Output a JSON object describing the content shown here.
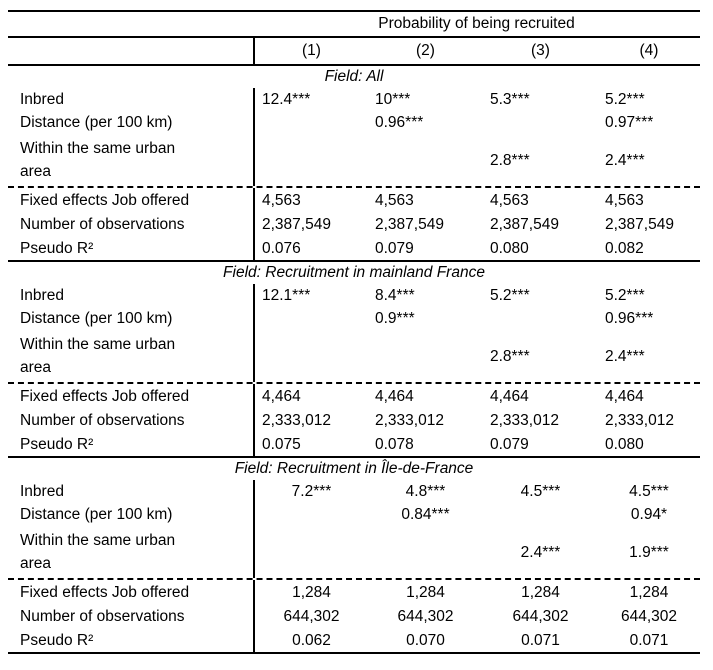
{
  "table": {
    "title": "Probability of being recruited",
    "column_headers": [
      "(1)",
      "(2)",
      "(3)",
      "(4)"
    ],
    "row_labels": {
      "inbred": "Inbred",
      "distance": "Distance (per 100 km)",
      "urban": "Within the same urban area",
      "fixed_effects": "Fixed effects Job offered",
      "observations": "Number of observations",
      "pseudo_r2": "Pseudo R²"
    },
    "panels": [
      {
        "field": "Field: All",
        "inbred": [
          "12.4***",
          "10***",
          "5.3***",
          "5.2***"
        ],
        "distance": [
          "",
          "0.96***",
          "",
          "0.97***"
        ],
        "urban": [
          "",
          "",
          "2.8***",
          "2.4***"
        ],
        "fixed_effects": [
          "4,563",
          "4,563",
          "4,563",
          "4,563"
        ],
        "observations": [
          "2,387,549",
          "2,387,549",
          "2,387,549",
          "2,387,549"
        ],
        "pseudo_r2": [
          "0.076",
          "0.079",
          "0.080",
          "0.082"
        ]
      },
      {
        "field": "Field: Recruitment in mainland France",
        "inbred": [
          "12.1***",
          "8.4***",
          "5.2***",
          "5.2***"
        ],
        "distance": [
          "",
          "0.9***",
          "",
          "0.96***"
        ],
        "urban": [
          "",
          "",
          "2.8***",
          "2.4***"
        ],
        "fixed_effects": [
          "4,464",
          "4,464",
          "4,464",
          "4,464"
        ],
        "observations": [
          "2,333,012",
          "2,333,012",
          "2,333,012",
          "2,333,012"
        ],
        "pseudo_r2": [
          "0.075",
          "0.078",
          "0.079",
          "0.080"
        ]
      },
      {
        "field": "Field: Recruitment in Île-de-France",
        "inbred": [
          "7.2***",
          "4.8***",
          "4.5***",
          "4.5***"
        ],
        "distance": [
          "",
          "0.84***",
          "",
          "0.94*"
        ],
        "urban": [
          "",
          "",
          "2.4***",
          "1.9***"
        ],
        "fixed_effects": [
          "1,284",
          "1,284",
          "1,284",
          "1,284"
        ],
        "observations": [
          "644,302",
          "644,302",
          "644,302",
          "644,302"
        ],
        "pseudo_r2": [
          "0.062",
          "0.070",
          "0.071",
          "0.071"
        ]
      }
    ]
  }
}
